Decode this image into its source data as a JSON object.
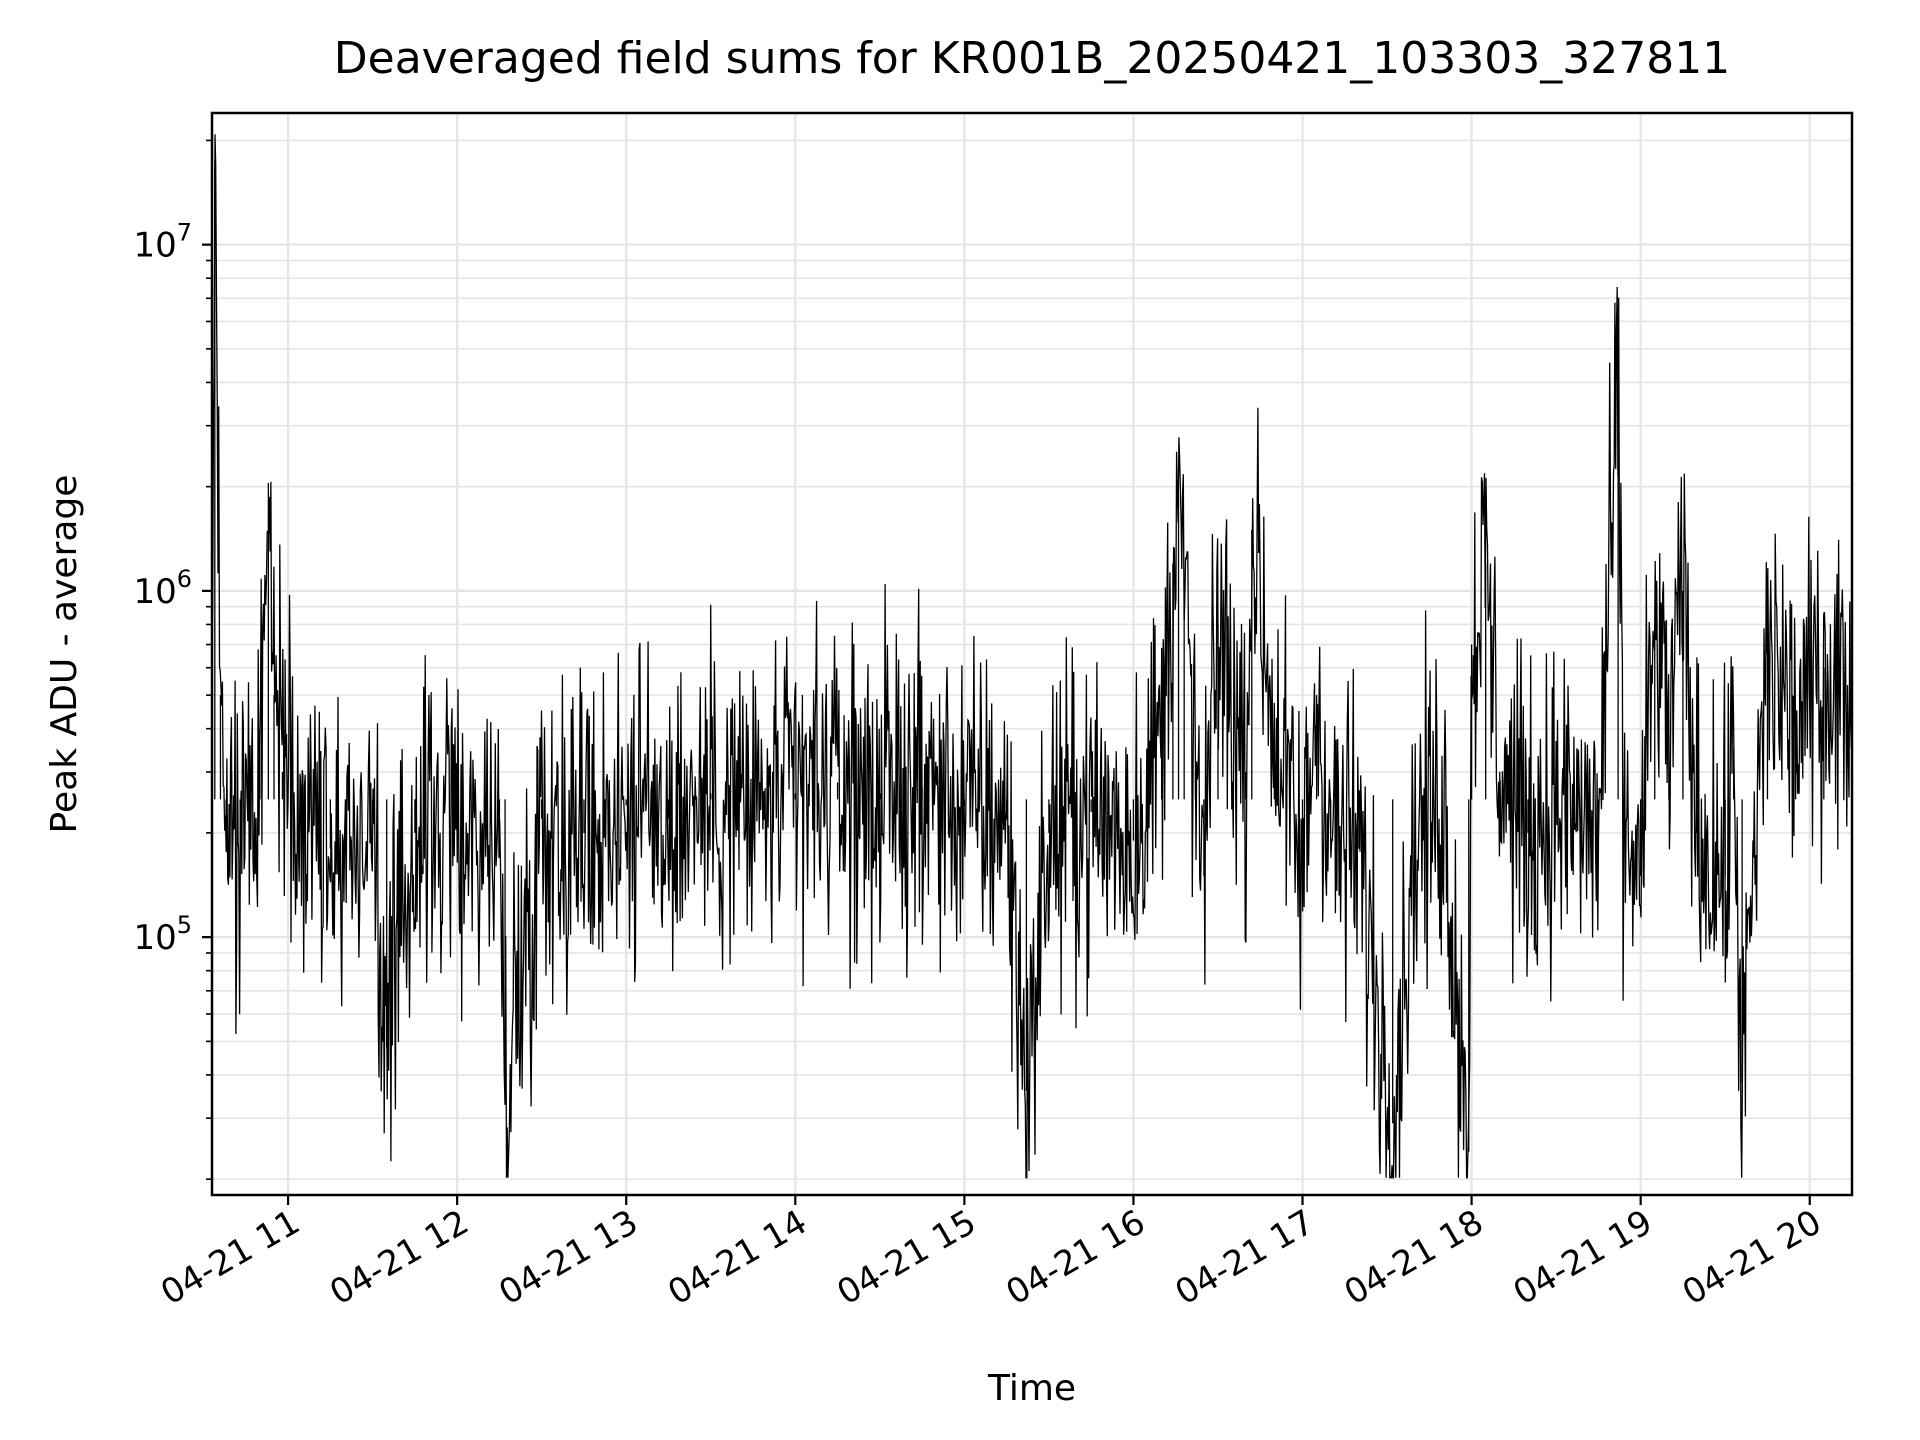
{
  "chart_data": {
    "type": "line",
    "title": "Deaveraged field sums for KR001B_20250421_103303_327811",
    "xlabel": "Time",
    "ylabel": "Peak ADU - average",
    "y_scale": "log",
    "xlim": [
      "2025-04-21 10:33",
      "2025-04-21 20:15"
    ],
    "ylim": [
      18000,
      24000000
    ],
    "x_ticks": [
      "04-21 11",
      "04-21 12",
      "04-21 13",
      "04-21 14",
      "04-21 15",
      "04-21 16",
      "04-21 17",
      "04-21 18",
      "04-21 19",
      "04-21 20"
    ],
    "y_ticks": [
      {
        "mantissa": "10",
        "exponent": "5"
      },
      {
        "mantissa": "10",
        "exponent": "6"
      },
      {
        "mantissa": "10",
        "exponent": "7"
      }
    ],
    "grid": true,
    "line_color": "#000000",
    "grid_color": "#e5e5e5",
    "series": [
      {
        "x": [
          "2025-04-21 10:33",
          "2025-04-21 10:34",
          "2025-04-21 10:36",
          "2025-04-21 10:38",
          "2025-04-21 10:40",
          "2025-04-21 10:43",
          "2025-04-21 10:46",
          "2025-04-21 10:50",
          "2025-04-21 10:53",
          "2025-04-21 10:55",
          "2025-04-21 10:58",
          "2025-04-21 11:05",
          "2025-04-21 11:15",
          "2025-04-21 11:30",
          "2025-04-21 11:35",
          "2025-04-21 11:45",
          "2025-04-21 12:00",
          "2025-04-21 12:15",
          "2025-04-21 12:17",
          "2025-04-21 12:30",
          "2025-04-21 12:45",
          "2025-04-21 13:00",
          "2025-04-21 13:15",
          "2025-04-21 13:30",
          "2025-04-21 13:45",
          "2025-04-21 14:00",
          "2025-04-21 14:15",
          "2025-04-21 14:30",
          "2025-04-21 14:45",
          "2025-04-21 15:00",
          "2025-04-21 15:15",
          "2025-04-21 15:22",
          "2025-04-21 15:30",
          "2025-04-21 15:45",
          "2025-04-21 16:00",
          "2025-04-21 16:10",
          "2025-04-21 16:14",
          "2025-04-21 16:16",
          "2025-04-21 16:18",
          "2025-04-21 16:22",
          "2025-04-21 16:25",
          "2025-04-21 16:30",
          "2025-04-21 16:40",
          "2025-04-21 16:42",
          "2025-04-21 16:50",
          "2025-04-21 17:00",
          "2025-04-21 17:05",
          "2025-04-21 17:10",
          "2025-04-21 17:20",
          "2025-04-21 17:32",
          "2025-04-21 17:40",
          "2025-04-21 17:50",
          "2025-04-21 17:59",
          "2025-04-21 18:00",
          "2025-04-21 18:05",
          "2025-04-21 18:10",
          "2025-04-21 18:20",
          "2025-04-21 18:30",
          "2025-04-21 18:45",
          "2025-04-21 18:52",
          "2025-04-21 18:54",
          "2025-04-21 19:00",
          "2025-04-21 19:05",
          "2025-04-21 19:10",
          "2025-04-21 19:15",
          "2025-04-21 19:20",
          "2025-04-21 19:30",
          "2025-04-21 19:33",
          "2025-04-21 19:36",
          "2025-04-21 19:45",
          "2025-04-21 19:55",
          "2025-04-21 20:05",
          "2025-04-21 20:15"
        ],
        "y": [
          300000,
          17500000,
          500000,
          200000,
          300000,
          180000,
          250000,
          400000,
          2050000,
          500000,
          300000,
          200000,
          180000,
          220000,
          48000,
          200000,
          220000,
          180000,
          37000,
          220000,
          200000,
          240000,
          220000,
          260000,
          230000,
          260000,
          280000,
          260000,
          270000,
          240000,
          220000,
          36000,
          200000,
          230000,
          190000,
          400000,
          1200000,
          1900000,
          1000000,
          300000,
          150000,
          800000,
          300000,
          1500000,
          400000,
          150000,
          500000,
          200000,
          180000,
          29000,
          200000,
          250000,
          24000,
          700000,
          1200000,
          300000,
          200000,
          240000,
          200000,
          3600000,
          200000,
          150000,
          800000,
          400000,
          1000000,
          200000,
          150000,
          350000,
          38000,
          700000,
          400000,
          600000,
          500000
        ]
      }
    ]
  }
}
